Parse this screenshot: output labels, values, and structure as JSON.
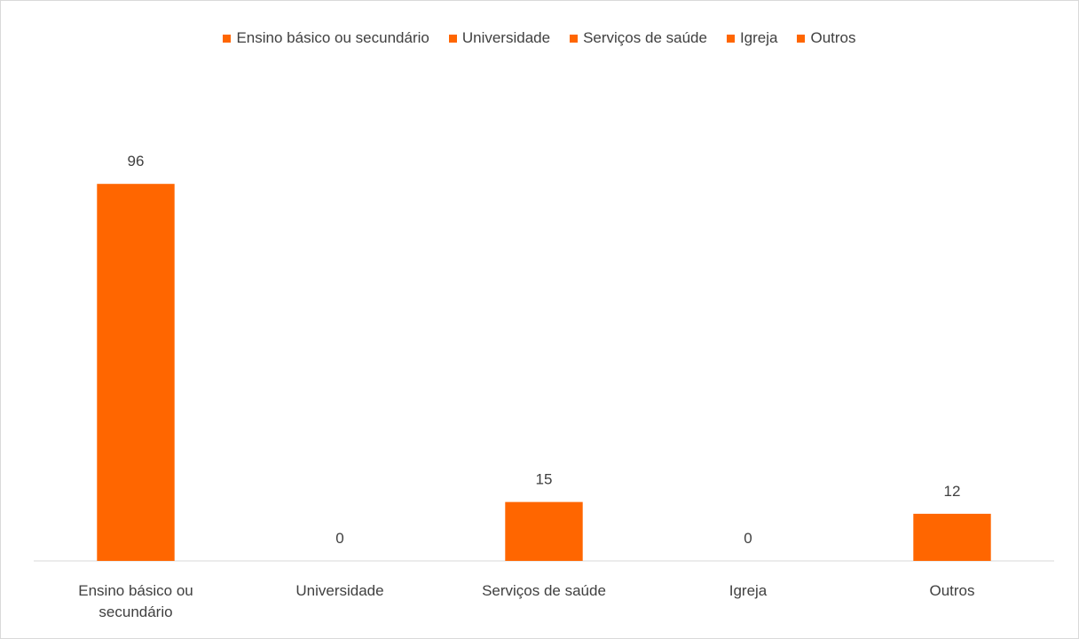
{
  "chart_data": {
    "type": "bar",
    "categories": [
      "Ensino básico ou secundário",
      "Universidade",
      "Serviços de saúde",
      "Igreja",
      "Outros"
    ],
    "values": [
      96,
      0,
      15,
      0,
      12
    ],
    "color": "#ff6600",
    "ylim": [
      0,
      120
    ],
    "legend": "top"
  }
}
